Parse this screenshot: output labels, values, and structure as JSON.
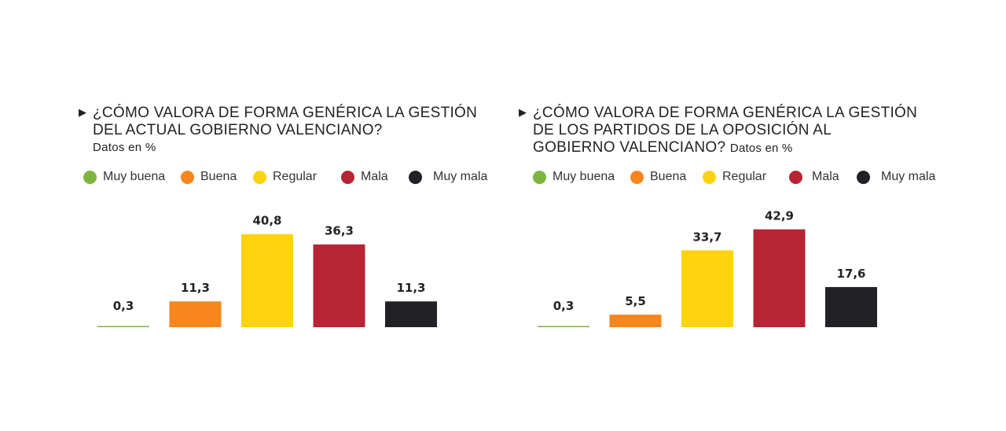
{
  "chart_data": [
    {
      "type": "bar",
      "title_lines": [
        "¿CÓMO VALORA DE FORMA GENÉRICA LA GESTIÓN",
        "DEL ACTUAL GOBIERNO VALENCIANO?"
      ],
      "subtitle": "Datos en %",
      "categories": [
        "Muy buena",
        "Buena",
        "Regular",
        "Mala",
        "Muy mala"
      ],
      "values": [
        0.3,
        11.3,
        40.8,
        36.3,
        11.3
      ],
      "value_labels": [
        "0,3",
        "11,3",
        "40,8",
        "36,3",
        "11,3"
      ],
      "colors": [
        "#7db53e",
        "#f7861d",
        "#fdd20f",
        "#b72433",
        "#222226"
      ],
      "ylim": [
        0,
        50
      ],
      "grid": false,
      "legend_position": "top"
    },
    {
      "type": "bar",
      "title_lines": [
        "¿CÓMO VALORA DE FORMA GENÉRICA LA GESTIÓN",
        "DE LOS PARTIDOS DE LA OPOSICIÓN AL",
        "GOBIERNO VALENCIANO?"
      ],
      "subtitle": "Datos en %",
      "categories": [
        "Muy buena",
        "Buena",
        "Regular",
        "Mala",
        "Muy mala"
      ],
      "values": [
        0.3,
        5.5,
        33.7,
        42.9,
        17.6
      ],
      "value_labels": [
        "0,3",
        "5,5",
        "33,7",
        "42,9",
        "17,6"
      ],
      "colors": [
        "#7db53e",
        "#f7861d",
        "#fdd20f",
        "#b72433",
        "#222226"
      ],
      "ylim": [
        0,
        50
      ],
      "grid": false,
      "legend_position": "top"
    }
  ],
  "icons": {
    "title_marker": "triangle-right-icon"
  }
}
